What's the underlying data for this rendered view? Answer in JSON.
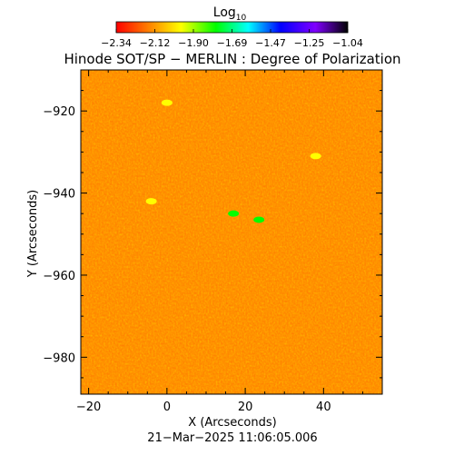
{
  "chart_data": {
    "type": "heatmap",
    "title": "Hinode SOT/SP − MERLIN : Degree of Polarization",
    "xlabel": "X (Arcseconds)",
    "ylabel": "Y (Arcseconds)",
    "colorbar": {
      "label_base": "Log",
      "label_sub": "10",
      "ticks": [
        "−2.34",
        "−2.12",
        "−1.90",
        "−1.69",
        "−1.47",
        "−1.25",
        "−1.04"
      ],
      "range": [
        -2.34,
        -1.04
      ],
      "colormap": "rainbow (red → orange → yellow → green → cyan → blue → purple → black)"
    },
    "xlim": [
      -22,
      55
    ],
    "ylim": [
      -989,
      -910
    ],
    "xticks": [
      -20,
      0,
      20,
      40
    ],
    "xtick_labels": [
      "−20",
      "0",
      "20",
      "40"
    ],
    "yticks": [
      -920,
      -940,
      -960,
      -980
    ],
    "ytick_labels": [
      "−920",
      "−940",
      "−960",
      "−980"
    ],
    "field_description_values": {
      "typical_log10_range": [
        -2.34,
        -2.15
      ],
      "bright_spots": [
        {
          "x": 23.5,
          "y": -946.5,
          "value": -1.78
        },
        {
          "x": 17,
          "y": -945,
          "value": -1.85
        },
        {
          "x": 38,
          "y": -931,
          "value": -1.95
        },
        {
          "x": -4,
          "y": -942,
          "value": -2.05
        },
        {
          "x": 0,
          "y": -918,
          "value": -2.05
        }
      ]
    },
    "timestamp": "21−Mar−2025 11:06:05.006"
  }
}
